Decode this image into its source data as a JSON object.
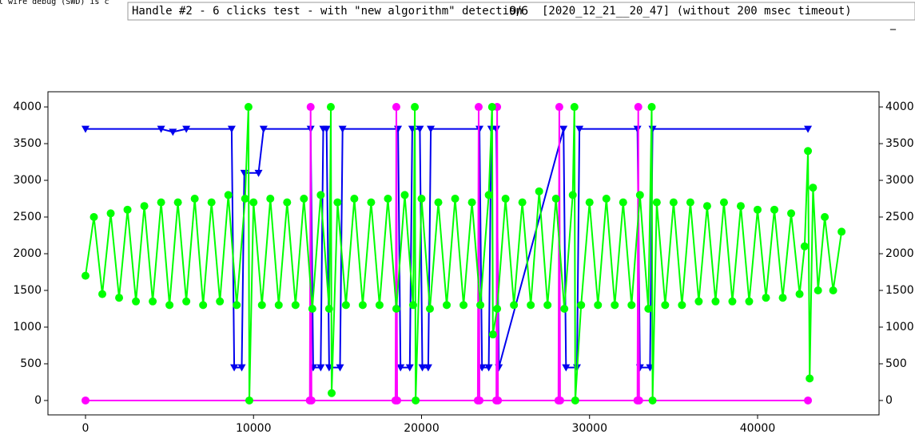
{
  "window": {
    "left_text": "l wire debug (SWD) is c",
    "title": "Handle #2 - 6 clicks test - with \"new algorithm\" detection",
    "counter": "9/6",
    "info": "[2020_12_21__20_47] (without 200 msec timeout)",
    "minimize": "_"
  },
  "chart_data": {
    "type": "line",
    "xlim": [
      -2235,
      47230
    ],
    "ylim": [
      -196,
      4207
    ],
    "y2lim": [
      -196,
      4207
    ],
    "xticks": [
      0,
      10000,
      20000,
      30000,
      40000
    ],
    "yticks": [
      0,
      500,
      1000,
      1500,
      2000,
      2500,
      3000,
      3500,
      4000
    ],
    "y2ticks": [
      0,
      500,
      1000,
      1500,
      2000,
      2500,
      3000,
      3500,
      4000
    ],
    "series": [
      {
        "color": "#0000ee",
        "marker": "triangle",
        "x": [
          0,
          4500,
          5200,
          6000,
          8700,
          8850,
          9300,
          9450,
          10300,
          10600,
          13400,
          13550,
          14000,
          14150,
          14350,
          14500,
          15150,
          15300,
          18600,
          18750,
          19300,
          19450,
          19900,
          20050,
          20400,
          20550,
          23450,
          23600,
          24000,
          24150,
          24450,
          24600,
          28450,
          28600,
          29250,
          29400,
          32850,
          33000,
          33600,
          33750,
          43000
        ],
        "values": [
          3700,
          3700,
          3660,
          3700,
          3700,
          450,
          450,
          3100,
          3100,
          3700,
          3700,
          450,
          450,
          3700,
          3700,
          450,
          450,
          3700,
          3700,
          450,
          450,
          3700,
          3700,
          450,
          450,
          3700,
          3700,
          450,
          450,
          3700,
          3700,
          450,
          3700,
          450,
          450,
          3700,
          3700,
          450,
          450,
          3700,
          3700
        ]
      },
      {
        "color": "#ff00ff",
        "marker": "circle",
        "x": [
          0,
          13350,
          13400,
          13450,
          18450,
          18500,
          18550,
          23350,
          23400,
          23450,
          24450,
          24500,
          24550,
          28150,
          28200,
          28250,
          32850,
          32900,
          32950,
          43000
        ],
        "values": [
          0,
          0,
          4000,
          0,
          0,
          4000,
          0,
          0,
          4000,
          0,
          0,
          4000,
          0,
          0,
          4000,
          0,
          0,
          4000,
          0,
          0
        ]
      },
      {
        "color": "#00ff00",
        "marker": "circle",
        "x": [
          0,
          500,
          1000,
          1500,
          2000,
          2500,
          3000,
          3500,
          4000,
          4500,
          5000,
          5500,
          6000,
          6500,
          7000,
          7500,
          8000,
          8500,
          9000,
          9500,
          9700,
          9750,
          10000,
          10500,
          11000,
          11500,
          12000,
          12500,
          13000,
          13500,
          14000,
          14500,
          14600,
          14650,
          15000,
          15500,
          16000,
          16500,
          17000,
          17500,
          18000,
          18500,
          19000,
          19500,
          19600,
          19650,
          20000,
          20500,
          21000,
          21500,
          22000,
          22500,
          23000,
          23500,
          24000,
          24200,
          24250,
          24500,
          25000,
          25500,
          26000,
          26500,
          27000,
          27500,
          28000,
          28500,
          29000,
          29100,
          29150,
          29500,
          30000,
          30500,
          31000,
          31500,
          32000,
          32500,
          33000,
          33500,
          33700,
          33750,
          34000,
          34500,
          35000,
          35500,
          36000,
          36500,
          37000,
          37500,
          38000,
          38500,
          39000,
          39500,
          40000,
          40500,
          41000,
          41500,
          42000,
          42500,
          42800,
          43000,
          43100,
          43300,
          43600,
          44000,
          44500,
          45000
        ],
        "values": [
          1700,
          2500,
          1450,
          2550,
          1400,
          2600,
          1350,
          2650,
          1350,
          2700,
          1300,
          2700,
          1350,
          2750,
          1300,
          2700,
          1350,
          2800,
          1300,
          2750,
          4000,
          0,
          2700,
          1300,
          2750,
          1300,
          2700,
          1300,
          2750,
          1250,
          2800,
          1250,
          4000,
          100,
          2700,
          1300,
          2750,
          1300,
          2700,
          1300,
          2750,
          1250,
          2800,
          1300,
          4000,
          0,
          2750,
          1250,
          2700,
          1300,
          2750,
          1300,
          2700,
          1300,
          2800,
          4000,
          900,
          1250,
          2750,
          1300,
          2700,
          1300,
          2850,
          1300,
          2750,
          1250,
          2800,
          4000,
          0,
          1300,
          2700,
          1300,
          2750,
          1300,
          2700,
          1300,
          2800,
          1250,
          4000,
          0,
          2700,
          1300,
          2700,
          1300,
          2700,
          1350,
          2650,
          1350,
          2700,
          1350,
          2650,
          1350,
          2600,
          1400,
          2600,
          1400,
          2550,
          1450,
          2100,
          3400,
          300,
          2900,
          1500,
          2500,
          1500,
          2300
        ]
      }
    ]
  }
}
